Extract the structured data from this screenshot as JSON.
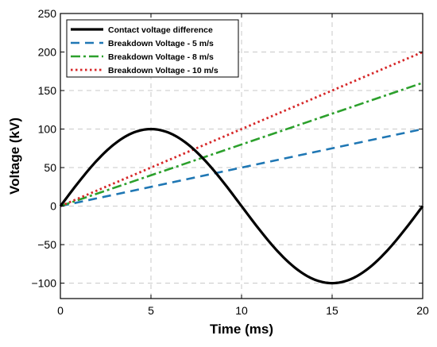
{
  "chart_data": {
    "type": "line",
    "xlabel": "Time (ms)",
    "ylabel": "Voltage (kV)",
    "xlim": [
      0,
      20
    ],
    "ylim": [
      -120,
      250
    ],
    "xticks": [
      0,
      5,
      10,
      15,
      20
    ],
    "yticks": [
      -100,
      -50,
      0,
      50,
      100,
      150,
      200,
      250
    ],
    "xtick_labels": [
      "0",
      "5",
      "10",
      "15",
      "20"
    ],
    "ytick_labels": [
      "−100",
      "−50",
      "0",
      "50",
      "100",
      "150",
      "200",
      "250"
    ],
    "grid": true,
    "legend_position": "top-left",
    "series": [
      {
        "name": "Contact voltage difference",
        "color": "#000000",
        "style": "solid",
        "x": [
          0,
          1,
          2,
          3,
          4,
          5,
          6,
          7,
          8,
          9,
          10,
          11,
          12,
          13,
          14,
          15,
          16,
          17,
          18,
          19,
          20
        ],
        "y": [
          0,
          30.9,
          58.8,
          80.9,
          95.1,
          100,
          95.1,
          80.9,
          58.8,
          30.9,
          0,
          -30.9,
          -58.8,
          -80.9,
          -95.1,
          -100,
          -95.1,
          -80.9,
          -58.8,
          -30.9,
          0
        ]
      },
      {
        "name": "Breakdown Voltage - 5 m/s",
        "color": "#1f77b4",
        "style": "dashed",
        "x": [
          0,
          20
        ],
        "y": [
          0,
          100
        ]
      },
      {
        "name": "Breakdown Voltage - 8 m/s",
        "color": "#2ca02c",
        "style": "dashdot",
        "x": [
          0,
          20
        ],
        "y": [
          0,
          160
        ]
      },
      {
        "name": "Breakdown Voltage - 10 m/s",
        "color": "#d62728",
        "style": "dotted",
        "x": [
          0,
          20
        ],
        "y": [
          0,
          200
        ]
      }
    ]
  }
}
